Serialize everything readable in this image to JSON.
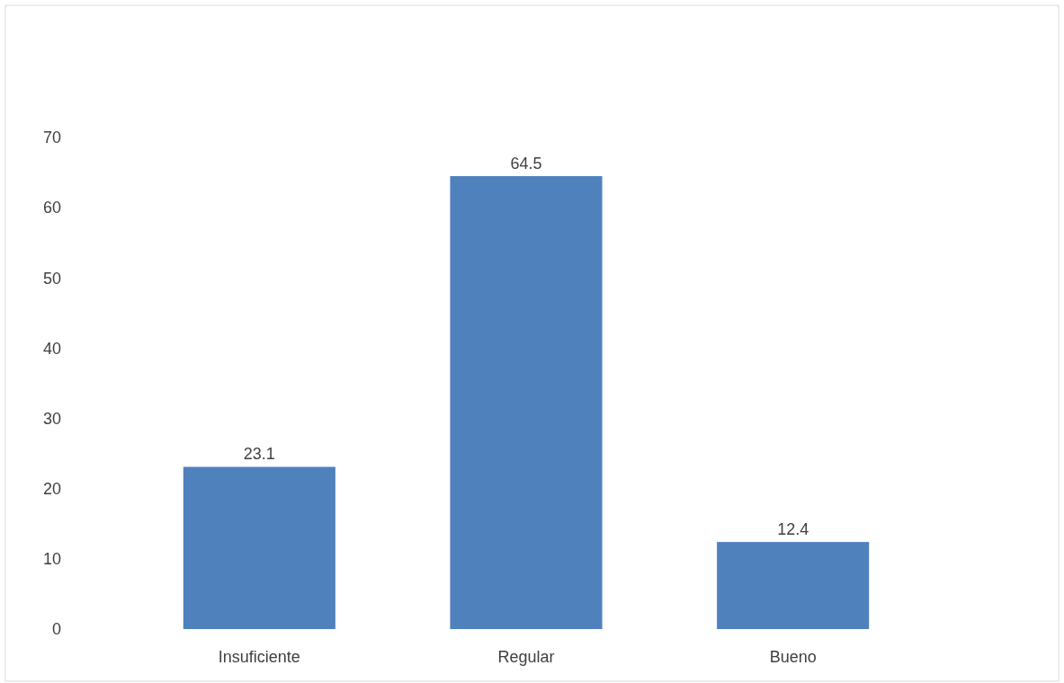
{
  "chart_data": {
    "type": "bar",
    "categories": [
      "Insuficiente",
      "Regular",
      "Bueno"
    ],
    "values": [
      23.1,
      64.5,
      12.4
    ],
    "color": "#4f81bd",
    "ylim": [
      0,
      70
    ],
    "yticks": [
      0,
      10,
      20,
      30,
      40,
      50,
      60,
      70
    ],
    "grid": false,
    "data_labels": true
  }
}
